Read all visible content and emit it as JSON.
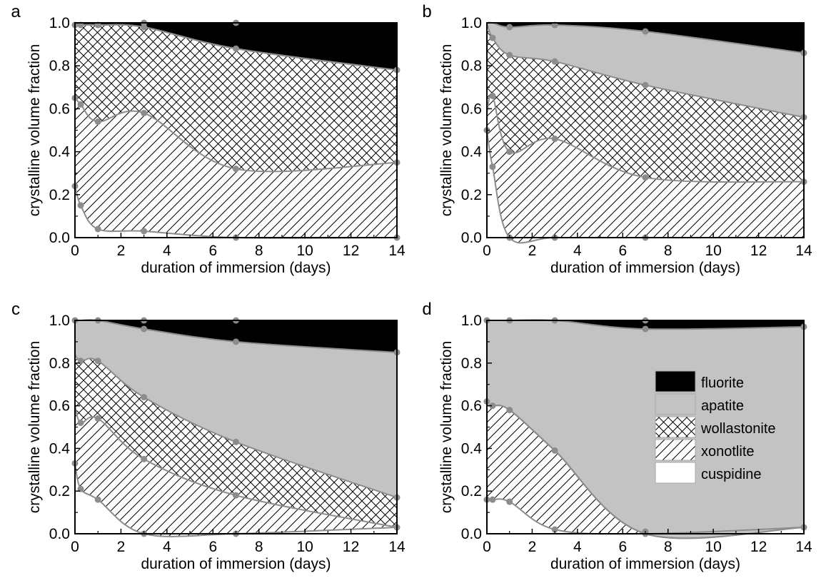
{
  "colors": {
    "fluorite": "#000000",
    "apatite": "#c3c3c3",
    "wollastonite": "#ffffff",
    "xonotlite": "#ffffff",
    "cuspidine": "#ffffff",
    "boundary": "#8c8c8c",
    "marker": "#8c8c8c",
    "hatch": "#000000"
  },
  "chart_data": [
    {
      "type": "area",
      "panel": "a",
      "xlabel": "duration of immersion (days)",
      "ylabel": "crystalline volume fraction",
      "xlim": [
        0,
        14
      ],
      "ylim": [
        0,
        1
      ],
      "xticks": [
        "0",
        "2",
        "4",
        "6",
        "8",
        "10",
        "12",
        "14"
      ],
      "yticks": [
        "0.0",
        "0.2",
        "0.4",
        "0.6",
        "0.8",
        "1.0"
      ],
      "x": [
        0,
        0.25,
        1,
        3,
        7,
        14
      ],
      "boundaries": {
        "cuspidine": [
          0.24,
          0.15,
          0.04,
          0.03,
          0.0,
          0.0
        ],
        "xonotlite": [
          0.65,
          0.62,
          0.54,
          0.58,
          0.32,
          0.35
        ],
        "wollastonite": [
          0.99,
          0.99,
          0.99,
          0.98,
          0.88,
          0.78
        ],
        "apatite": [
          0.99,
          0.99,
          0.99,
          0.98,
          0.88,
          0.78
        ],
        "fluorite": [
          1.0,
          1.0,
          1.0,
          1.0,
          1.0,
          1.0
        ]
      },
      "marker_points": [
        [
          0,
          0.24
        ],
        [
          0.25,
          0.15
        ],
        [
          1,
          0.04
        ],
        [
          3,
          0.03
        ],
        [
          7,
          0.0
        ],
        [
          14,
          0.0
        ],
        [
          0,
          0.65
        ],
        [
          0.25,
          0.62
        ],
        [
          1,
          0.54
        ],
        [
          3,
          0.58
        ],
        [
          7,
          0.32
        ],
        [
          14,
          0.35
        ],
        [
          0,
          0.99
        ],
        [
          0.25,
          0.99
        ],
        [
          1,
          0.99
        ],
        [
          3,
          0.98
        ],
        [
          7,
          0.88
        ],
        [
          14,
          0.78
        ],
        [
          3,
          1.0
        ],
        [
          7,
          1.0
        ]
      ]
    },
    {
      "type": "area",
      "panel": "b",
      "xlabel": "duration of immersion (days)",
      "ylabel": "crystalline volume fraction",
      "xlim": [
        0,
        14
      ],
      "ylim": [
        0,
        1
      ],
      "xticks": [
        "0",
        "2",
        "4",
        "6",
        "8",
        "10",
        "12",
        "14"
      ],
      "yticks": [
        "0.0",
        "0.2",
        "0.4",
        "0.6",
        "0.8",
        "1.0"
      ],
      "x": [
        0,
        0.25,
        1,
        3,
        7,
        14
      ],
      "boundaries": {
        "cuspidine": [
          0.5,
          0.33,
          0.0,
          0.0,
          0.0,
          0.0
        ],
        "xonotlite": [
          0.58,
          0.66,
          0.4,
          0.46,
          0.28,
          0.26
        ],
        "wollastonite": [
          1.0,
          0.93,
          0.85,
          0.82,
          0.71,
          0.56
        ],
        "apatite": [
          1.0,
          1.0,
          0.98,
          0.99,
          0.96,
          0.86
        ],
        "fluorite": [
          1.0,
          1.0,
          1.0,
          1.0,
          1.0,
          1.0
        ]
      },
      "marker_points": [
        [
          0,
          0.5
        ],
        [
          0.25,
          0.33
        ],
        [
          1,
          0.0
        ],
        [
          3,
          0.0
        ],
        [
          7,
          0.0
        ],
        [
          0.25,
          0.66
        ],
        [
          1,
          0.4
        ],
        [
          3,
          0.46
        ],
        [
          7,
          0.28
        ],
        [
          14,
          0.26
        ],
        [
          0.25,
          0.93
        ],
        [
          1,
          0.85
        ],
        [
          3,
          0.82
        ],
        [
          7,
          0.71
        ],
        [
          14,
          0.56
        ],
        [
          1,
          0.98
        ],
        [
          3,
          0.99
        ],
        [
          7,
          0.96
        ],
        [
          14,
          0.86
        ]
      ]
    },
    {
      "type": "area",
      "panel": "c",
      "xlabel": "duration of immersion (days)",
      "ylabel": "crystalline volume fraction",
      "xlim": [
        0,
        14
      ],
      "ylim": [
        0,
        1
      ],
      "xticks": [
        "0",
        "2",
        "4",
        "6",
        "8",
        "10",
        "12",
        "14"
      ],
      "yticks": [
        "0.0",
        "0.2",
        "0.4",
        "0.6",
        "0.8",
        "1.0"
      ],
      "x": [
        0,
        0.25,
        1,
        3,
        7,
        14
      ],
      "boundaries": {
        "cuspidine": [
          0.33,
          0.21,
          0.16,
          0.0,
          0.0,
          0.03
        ],
        "xonotlite": [
          0.6,
          0.52,
          0.54,
          0.35,
          0.18,
          0.03
        ],
        "wollastonite": [
          0.84,
          0.81,
          0.81,
          0.64,
          0.43,
          0.17
        ],
        "apatite": [
          1.0,
          1.0,
          1.0,
          0.96,
          0.9,
          0.85
        ],
        "fluorite": [
          1.0,
          1.0,
          1.0,
          1.0,
          1.0,
          1.0
        ]
      },
      "marker_points": [
        [
          0,
          0.33
        ],
        [
          0.25,
          0.21
        ],
        [
          1,
          0.16
        ],
        [
          3,
          0.0
        ],
        [
          7,
          0.0
        ],
        [
          14,
          0.03
        ],
        [
          0.25,
          0.52
        ],
        [
          1,
          0.54
        ],
        [
          3,
          0.35
        ],
        [
          7,
          0.18
        ],
        [
          0.25,
          0.81
        ],
        [
          1,
          0.81
        ],
        [
          3,
          0.64
        ],
        [
          7,
          0.43
        ],
        [
          14,
          0.17
        ],
        [
          0,
          1.0
        ],
        [
          1,
          1.0
        ],
        [
          3,
          0.96
        ],
        [
          7,
          0.9
        ],
        [
          14,
          0.85
        ],
        [
          3,
          1.0
        ],
        [
          7,
          1.0
        ]
      ]
    },
    {
      "type": "area",
      "panel": "d",
      "xlabel": "duration of immersion (days)",
      "ylabel": "crystalline volume fraction",
      "xlim": [
        0,
        14
      ],
      "ylim": [
        0,
        1
      ],
      "xticks": [
        "0",
        "2",
        "4",
        "6",
        "8",
        "10",
        "12",
        "14"
      ],
      "yticks": [
        "0.0",
        "0.2",
        "0.4",
        "0.6",
        "0.8",
        "1.0"
      ],
      "x": [
        0,
        0.25,
        1,
        3,
        7,
        14
      ],
      "boundaries": {
        "cuspidine": [
          0.16,
          0.16,
          0.15,
          0.02,
          0.0,
          0.03
        ],
        "xonotlite": [
          0.6,
          0.6,
          0.58,
          0.39,
          0.0,
          0.03
        ],
        "wollastonite": [
          0.6,
          0.6,
          0.58,
          0.39,
          0.0,
          0.03
        ],
        "apatite": [
          1.0,
          1.0,
          1.0,
          1.0,
          0.96,
          0.97
        ],
        "fluorite": [
          1.0,
          1.0,
          1.0,
          1.0,
          1.0,
          1.0
        ]
      },
      "marker_points": [
        [
          0,
          0.16
        ],
        [
          0.25,
          0.16
        ],
        [
          1,
          0.15
        ],
        [
          3,
          0.02
        ],
        [
          7,
          0.0
        ],
        [
          14,
          0.03
        ],
        [
          0,
          0.62
        ],
        [
          0.25,
          0.6
        ],
        [
          1,
          0.58
        ],
        [
          3,
          0.39
        ],
        [
          7,
          0.01
        ],
        [
          0,
          1.0
        ],
        [
          1,
          1.0
        ],
        [
          3,
          1.0
        ],
        [
          7,
          0.96
        ],
        [
          7,
          1.0
        ],
        [
          14,
          0.97
        ]
      ],
      "legend": {
        "position": "center-right",
        "entries": [
          "fluorite",
          "apatite",
          "wollastonite",
          "xonotlite",
          "cuspidine"
        ]
      }
    }
  ]
}
